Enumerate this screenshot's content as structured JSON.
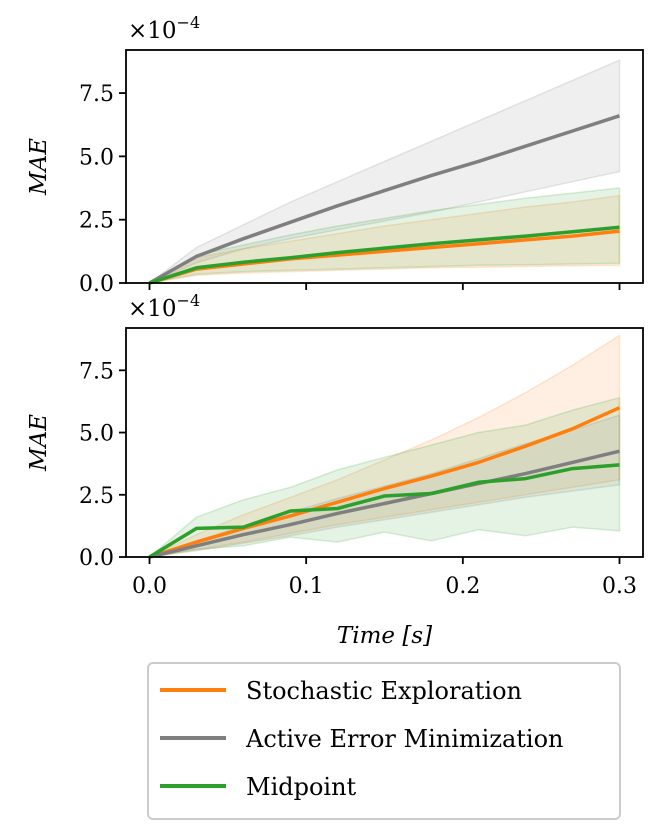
{
  "chart_data": [
    {
      "type": "line",
      "panel": "top",
      "xlabel": "",
      "ylabel": "MAE",
      "y_multiplier": "×10",
      "y_multiplier_exp": "−4",
      "xlim": [
        -0.015,
        0.315
      ],
      "ylim": [
        0.0,
        9.2
      ],
      "yticks": [
        0.0,
        2.5,
        5.0,
        7.5
      ],
      "ytick_labels": [
        "0.0",
        "2.5",
        "5.0",
        "7.5"
      ],
      "xticks": [
        0.0,
        0.1,
        0.2,
        0.3
      ],
      "x": [
        0.0,
        0.03,
        0.06,
        0.09,
        0.12,
        0.15,
        0.18,
        0.21,
        0.24,
        0.27,
        0.3
      ],
      "series": [
        {
          "name": "Active Error Minimization",
          "color": "#7f7f7f",
          "values": [
            0.0,
            1.05,
            1.75,
            2.4,
            3.05,
            3.65,
            4.25,
            4.8,
            5.4,
            6.0,
            6.6
          ],
          "lower": [
            0.0,
            0.8,
            1.35,
            1.75,
            2.1,
            2.45,
            2.8,
            3.2,
            3.6,
            4.0,
            4.4
          ],
          "upper": [
            0.0,
            1.4,
            2.3,
            3.2,
            4.0,
            4.8,
            5.6,
            6.4,
            7.2,
            8.0,
            8.8
          ]
        },
        {
          "name": "Stochastic Exploration",
          "color": "#ff7f0e",
          "values": [
            0.0,
            0.55,
            0.75,
            0.95,
            1.1,
            1.25,
            1.4,
            1.55,
            1.7,
            1.85,
            2.05
          ],
          "lower": [
            0.0,
            0.3,
            0.4,
            0.45,
            0.5,
            0.55,
            0.6,
            0.62,
            0.65,
            0.68,
            0.7
          ],
          "upper": [
            0.0,
            1.0,
            1.35,
            1.65,
            1.95,
            2.25,
            2.5,
            2.75,
            3.0,
            3.2,
            3.45
          ]
        },
        {
          "name": "Midpoint",
          "color": "#2ca02c",
          "values": [
            0.0,
            0.6,
            0.82,
            1.0,
            1.2,
            1.38,
            1.55,
            1.7,
            1.85,
            2.02,
            2.2
          ],
          "lower": [
            0.0,
            0.35,
            0.45,
            0.5,
            0.55,
            0.6,
            0.65,
            0.7,
            0.72,
            0.75,
            0.78
          ],
          "upper": [
            0.0,
            1.1,
            1.5,
            1.9,
            2.25,
            2.55,
            2.85,
            3.1,
            3.35,
            3.55,
            3.75
          ]
        }
      ]
    },
    {
      "type": "line",
      "panel": "bottom",
      "xlabel": "Time [s]",
      "ylabel": "MAE",
      "y_multiplier": "×10",
      "y_multiplier_exp": "−4",
      "xlim": [
        -0.015,
        0.315
      ],
      "ylim": [
        0.0,
        9.2
      ],
      "yticks": [
        0.0,
        2.5,
        5.0,
        7.5
      ],
      "ytick_labels": [
        "0.0",
        "2.5",
        "5.0",
        "7.5"
      ],
      "xticks": [
        0.0,
        0.1,
        0.2,
        0.3
      ],
      "xtick_labels": [
        "0.0",
        "0.1",
        "0.2",
        "0.3"
      ],
      "x": [
        0.0,
        0.03,
        0.06,
        0.09,
        0.12,
        0.15,
        0.18,
        0.21,
        0.24,
        0.27,
        0.3
      ],
      "series": [
        {
          "name": "Stochastic Exploration",
          "color": "#ff7f0e",
          "values": [
            0.0,
            0.6,
            1.15,
            1.65,
            2.2,
            2.75,
            3.25,
            3.8,
            4.45,
            5.15,
            6.0
          ],
          "lower": [
            0.0,
            0.3,
            0.6,
            0.95,
            1.3,
            1.6,
            1.9,
            2.2,
            2.5,
            2.8,
            3.1
          ],
          "upper": [
            0.0,
            0.9,
            1.7,
            2.4,
            3.1,
            3.9,
            4.7,
            5.6,
            6.6,
            7.7,
            8.9
          ]
        },
        {
          "name": "Active Error Minimization",
          "color": "#7f7f7f",
          "values": [
            0.0,
            0.45,
            0.9,
            1.3,
            1.75,
            2.15,
            2.55,
            2.95,
            3.35,
            3.8,
            4.25
          ],
          "lower": [
            0.0,
            0.25,
            0.55,
            0.85,
            1.2,
            1.5,
            1.8,
            2.1,
            2.4,
            2.65,
            2.9
          ],
          "upper": [
            0.0,
            0.65,
            1.25,
            1.8,
            2.35,
            2.85,
            3.35,
            3.95,
            4.55,
            5.1,
            5.7
          ]
        },
        {
          "name": "Midpoint",
          "color": "#2ca02c",
          "values": [
            0.0,
            1.15,
            1.2,
            1.85,
            1.95,
            2.45,
            2.55,
            3.0,
            3.15,
            3.55,
            3.7
          ],
          "lower": [
            0.0,
            0.3,
            0.45,
            0.8,
            0.6,
            1.0,
            0.65,
            1.1,
            0.85,
            1.2,
            1.05
          ],
          "upper": [
            0.0,
            1.6,
            2.3,
            2.8,
            3.5,
            4.0,
            4.5,
            5.0,
            5.3,
            5.9,
            6.4
          ]
        }
      ]
    }
  ],
  "legend": {
    "entries": [
      {
        "label": "Stochastic Exploration",
        "color": "#ff7f0e"
      },
      {
        "label": "Active Error Minimization",
        "color": "#7f7f7f"
      },
      {
        "label": "Midpoint",
        "color": "#2ca02c"
      }
    ]
  }
}
